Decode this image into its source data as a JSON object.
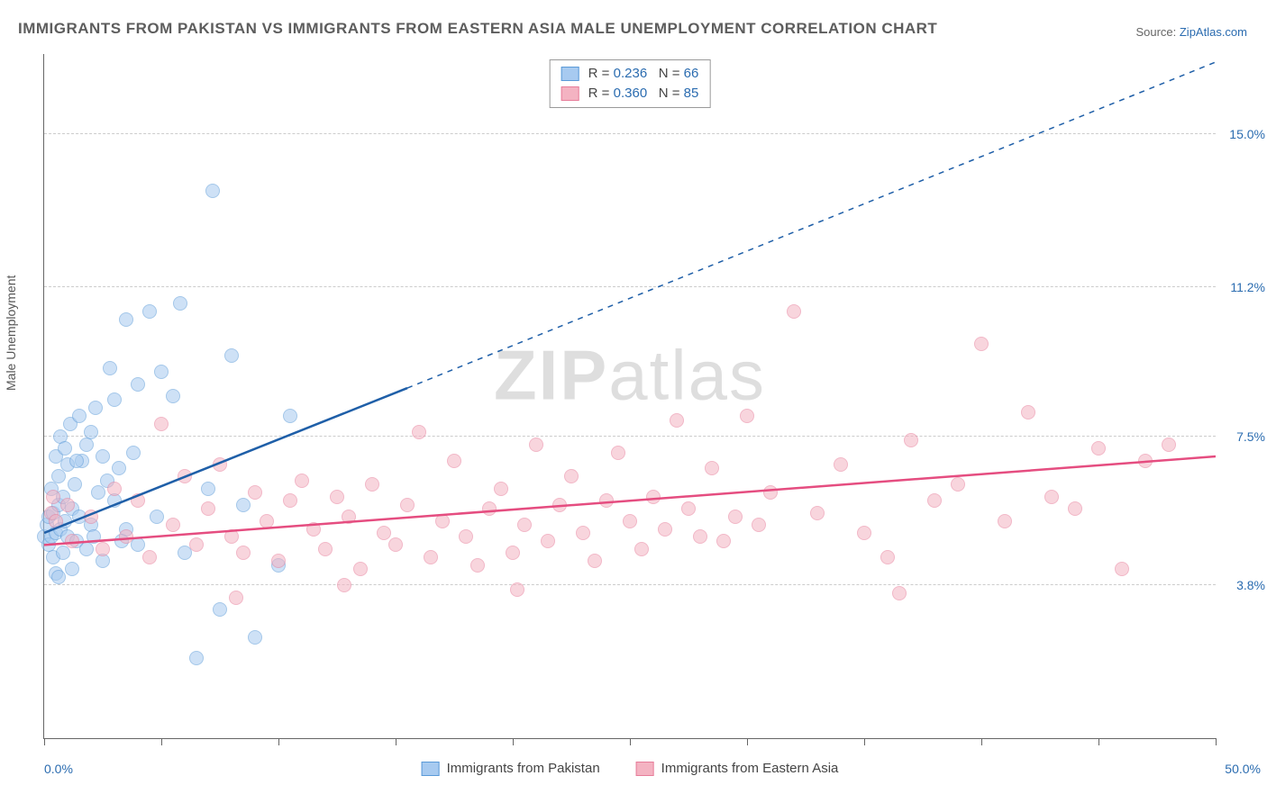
{
  "title": "IMMIGRANTS FROM PAKISTAN VS IMMIGRANTS FROM EASTERN ASIA MALE UNEMPLOYMENT CORRELATION CHART",
  "source_prefix": "Source: ",
  "source_link": "ZipAtlas.com",
  "ylabel": "Male Unemployment",
  "watermark_bold": "ZIP",
  "watermark_light": "atlas",
  "chart": {
    "type": "scatter",
    "xlim": [
      0.0,
      50.0
    ],
    "ylim": [
      0.0,
      17.0
    ],
    "xtick_positions": [
      0,
      5,
      10,
      15,
      20,
      25,
      30,
      35,
      40,
      45,
      50
    ],
    "xtick_labels": {
      "0": "0.0%",
      "50": "50.0%"
    },
    "ytick_gridlines": [
      3.8,
      7.5,
      11.2,
      15.0
    ],
    "ytick_labels": [
      "3.8%",
      "7.5%",
      "11.2%",
      "15.0%"
    ],
    "background_color": "#ffffff",
    "grid_color": "#cccccc",
    "axis_color": "#666666",
    "series": [
      {
        "id": "pakistan",
        "label": "Immigrants from Pakistan",
        "R": "0.236",
        "N": "66",
        "fill": "#a7caf0",
        "fill_opacity": 0.55,
        "stroke": "#5a9ad8",
        "line_color": "#1f5fa8",
        "trend": {
          "x1": 0.0,
          "y1": 5.1,
          "x2_solid": 15.5,
          "y2_solid": 8.7,
          "x2_dash": 50.0,
          "y2_dash": 16.8
        },
        "points": [
          [
            0.0,
            5.0
          ],
          [
            0.1,
            5.3
          ],
          [
            0.2,
            5.5
          ],
          [
            0.2,
            4.8
          ],
          [
            0.3,
            6.2
          ],
          [
            0.3,
            5.0
          ],
          [
            0.4,
            5.6
          ],
          [
            0.4,
            4.5
          ],
          [
            0.5,
            7.0
          ],
          [
            0.5,
            5.1
          ],
          [
            0.6,
            6.5
          ],
          [
            0.6,
            5.8
          ],
          [
            0.7,
            7.5
          ],
          [
            0.7,
            5.2
          ],
          [
            0.8,
            6.0
          ],
          [
            0.8,
            4.6
          ],
          [
            0.9,
            7.2
          ],
          [
            0.9,
            5.4
          ],
          [
            1.0,
            6.8
          ],
          [
            1.0,
            5.0
          ],
          [
            1.1,
            7.8
          ],
          [
            1.2,
            5.7
          ],
          [
            1.3,
            6.3
          ],
          [
            1.4,
            4.9
          ],
          [
            1.5,
            8.0
          ],
          [
            1.5,
            5.5
          ],
          [
            1.6,
            6.9
          ],
          [
            1.8,
            7.3
          ],
          [
            1.8,
            4.7
          ],
          [
            2.0,
            7.6
          ],
          [
            2.0,
            5.3
          ],
          [
            2.2,
            8.2
          ],
          [
            2.3,
            6.1
          ],
          [
            2.5,
            7.0
          ],
          [
            2.5,
            4.4
          ],
          [
            2.8,
            9.2
          ],
          [
            3.0,
            5.9
          ],
          [
            3.0,
            8.4
          ],
          [
            3.2,
            6.7
          ],
          [
            3.5,
            10.4
          ],
          [
            3.5,
            5.2
          ],
          [
            3.8,
            7.1
          ],
          [
            4.0,
            4.8
          ],
          [
            4.0,
            8.8
          ],
          [
            4.5,
            10.6
          ],
          [
            4.8,
            5.5
          ],
          [
            5.0,
            9.1
          ],
          [
            5.5,
            8.5
          ],
          [
            5.8,
            10.8
          ],
          [
            6.0,
            4.6
          ],
          [
            6.5,
            2.0
          ],
          [
            7.0,
            6.2
          ],
          [
            7.2,
            13.6
          ],
          [
            7.5,
            3.2
          ],
          [
            8.0,
            9.5
          ],
          [
            8.5,
            5.8
          ],
          [
            9.0,
            2.5
          ],
          [
            10.0,
            4.3
          ],
          [
            10.5,
            8.0
          ],
          [
            1.2,
            4.2
          ],
          [
            1.4,
            6.9
          ],
          [
            2.1,
            5.0
          ],
          [
            2.7,
            6.4
          ],
          [
            3.3,
            4.9
          ],
          [
            0.5,
            4.1
          ],
          [
            0.6,
            4.0
          ]
        ]
      },
      {
        "id": "eastern_asia",
        "label": "Immigrants from Eastern Asia",
        "R": "0.360",
        "N": "85",
        "fill": "#f4b3c2",
        "fill_opacity": 0.55,
        "stroke": "#e77d9a",
        "line_color": "#e54d80",
        "trend": {
          "x1": 0.0,
          "y1": 4.8,
          "x2_solid": 50.0,
          "y2_solid": 7.0,
          "x2_dash": 50.0,
          "y2_dash": 7.0
        },
        "points": [
          [
            0.3,
            5.6
          ],
          [
            0.4,
            6.0
          ],
          [
            0.5,
            5.4
          ],
          [
            1.0,
            5.8
          ],
          [
            1.2,
            4.9
          ],
          [
            2.0,
            5.5
          ],
          [
            2.5,
            4.7
          ],
          [
            3.0,
            6.2
          ],
          [
            3.5,
            5.0
          ],
          [
            4.0,
            5.9
          ],
          [
            4.5,
            4.5
          ],
          [
            5.0,
            7.8
          ],
          [
            5.5,
            5.3
          ],
          [
            6.0,
            6.5
          ],
          [
            6.5,
            4.8
          ],
          [
            7.0,
            5.7
          ],
          [
            7.5,
            6.8
          ],
          [
            8.0,
            5.0
          ],
          [
            8.5,
            4.6
          ],
          [
            9.0,
            6.1
          ],
          [
            9.5,
            5.4
          ],
          [
            10.0,
            4.4
          ],
          [
            10.5,
            5.9
          ],
          [
            11.0,
            6.4
          ],
          [
            11.5,
            5.2
          ],
          [
            12.0,
            4.7
          ],
          [
            12.5,
            6.0
          ],
          [
            13.0,
            5.5
          ],
          [
            13.5,
            4.2
          ],
          [
            14.0,
            6.3
          ],
          [
            14.5,
            5.1
          ],
          [
            15.0,
            4.8
          ],
          [
            15.5,
            5.8
          ],
          [
            16.0,
            7.6
          ],
          [
            16.5,
            4.5
          ],
          [
            17.0,
            5.4
          ],
          [
            17.5,
            6.9
          ],
          [
            18.0,
            5.0
          ],
          [
            18.5,
            4.3
          ],
          [
            19.0,
            5.7
          ],
          [
            19.5,
            6.2
          ],
          [
            20.0,
            4.6
          ],
          [
            20.5,
            5.3
          ],
          [
            21.0,
            7.3
          ],
          [
            21.5,
            4.9
          ],
          [
            22.0,
            5.8
          ],
          [
            22.5,
            6.5
          ],
          [
            23.0,
            5.1
          ],
          [
            23.5,
            4.4
          ],
          [
            24.0,
            5.9
          ],
          [
            24.5,
            7.1
          ],
          [
            25.0,
            5.4
          ],
          [
            25.5,
            4.7
          ],
          [
            26.0,
            6.0
          ],
          [
            26.5,
            5.2
          ],
          [
            27.0,
            7.9
          ],
          [
            27.5,
            5.7
          ],
          [
            28.0,
            5.0
          ],
          [
            28.5,
            6.7
          ],
          [
            29.0,
            4.9
          ],
          [
            29.5,
            5.5
          ],
          [
            30.0,
            8.0
          ],
          [
            30.5,
            5.3
          ],
          [
            31.0,
            6.1
          ],
          [
            32.0,
            10.6
          ],
          [
            33.0,
            5.6
          ],
          [
            34.0,
            6.8
          ],
          [
            35.0,
            5.1
          ],
          [
            36.0,
            4.5
          ],
          [
            37.0,
            7.4
          ],
          [
            38.0,
            5.9
          ],
          [
            39.0,
            6.3
          ],
          [
            40.0,
            9.8
          ],
          [
            41.0,
            5.4
          ],
          [
            42.0,
            8.1
          ],
          [
            43.0,
            6.0
          ],
          [
            44.0,
            5.7
          ],
          [
            45.0,
            7.2
          ],
          [
            46.0,
            4.2
          ],
          [
            47.0,
            6.9
          ],
          [
            48.0,
            7.3
          ],
          [
            36.5,
            3.6
          ],
          [
            20.2,
            3.7
          ],
          [
            12.8,
            3.8
          ],
          [
            8.2,
            3.5
          ]
        ]
      }
    ]
  },
  "legend_top_R_label": "R",
  "legend_top_N_label": "N",
  "legend_top_eq": " = "
}
